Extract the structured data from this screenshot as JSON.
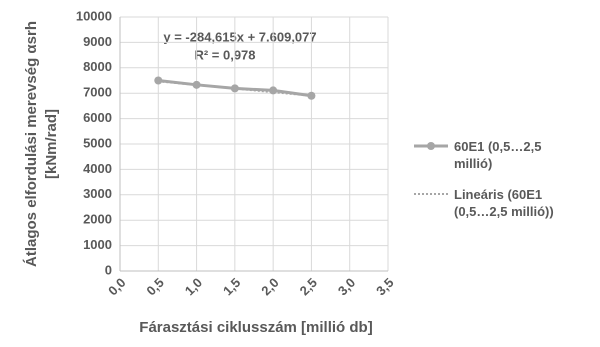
{
  "chart_data": {
    "type": "line",
    "equation": "y = -284,615x + 7.609,077",
    "r_squared": "R² = 0,978",
    "x_label": "Fárasztási ciklusszám  [millió db]",
    "y_label_lines": [
      "Átlagos elfordulási merevség αsrh",
      "[kNm/rad]"
    ],
    "x": [
      0.5,
      1.0,
      1.5,
      2.0,
      2.5
    ],
    "series": [
      {
        "name": "60E1 (0,5…2,5 millió)",
        "color": "#a6a6a6",
        "style": "solid-markers",
        "values": [
          7500,
          7330,
          7190,
          7110,
          6900
        ]
      },
      {
        "name": "Lineáris (60E1 (0,5…2,5 millió))",
        "color": "#a6a6a6",
        "style": "dotted",
        "values": [
          7466.8,
          7324.2,
          7182.2,
          7039.9,
          6897.5
        ]
      }
    ],
    "xlim": [
      0,
      3.5
    ],
    "xticks": [
      {
        "value": 0,
        "label": "0,0"
      },
      {
        "value": 0.5,
        "label": "0,5"
      },
      {
        "value": 1,
        "label": "1,0"
      },
      {
        "value": 1.5,
        "label": "1,5"
      },
      {
        "value": 2,
        "label": "2,0"
      },
      {
        "value": 2.5,
        "label": "2,5"
      },
      {
        "value": 3,
        "label": "3,0"
      },
      {
        "value": 3.5,
        "label": "3,5"
      }
    ],
    "ylim": [
      0,
      10000
    ],
    "yticks": [
      0,
      1000,
      2000,
      3000,
      4000,
      5000,
      6000,
      7000,
      8000,
      9000,
      10000
    ],
    "grid": true,
    "legend": "right"
  }
}
